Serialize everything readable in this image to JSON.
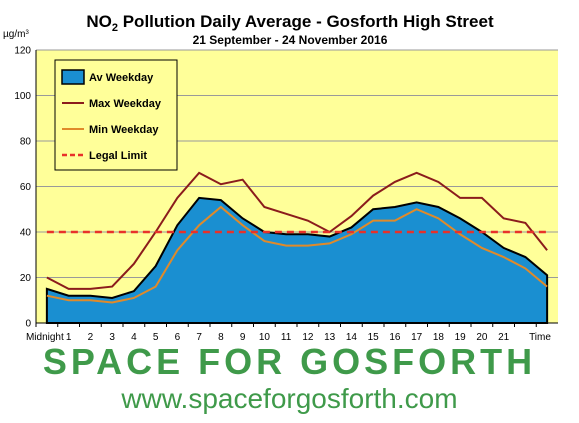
{
  "chart_data": {
    "type": "area",
    "title_main": "NO",
    "title_sub": "2",
    "title_rest": " Pollution Daily Average - Gosforth High Street",
    "subtitle": "21 September - 24 November 2016",
    "ylabel": "µg/m",
    "ylabel_sup": "3",
    "xlabel": "Time",
    "ylim": [
      0,
      120
    ],
    "yticks": [
      0,
      20,
      40,
      60,
      80,
      100,
      120
    ],
    "grid": true,
    "legend_position": "top-left",
    "categories": [
      "Midnight",
      "1",
      "2",
      "3",
      "4",
      "5",
      "6",
      "7",
      "8",
      "9",
      "10",
      "11",
      "12",
      "13",
      "14",
      "15",
      "16",
      "17",
      "18",
      "19",
      "20",
      "21",
      "",
      ""
    ],
    "series": [
      {
        "name": "Av Weekday",
        "kind": "area",
        "color": "#1a8fd1",
        "outline": "#000000",
        "values": [
          15,
          12,
          12,
          11,
          14,
          25,
          43,
          55,
          54,
          46,
          40,
          39,
          39,
          38,
          42,
          50,
          51,
          53,
          51,
          46,
          40,
          33,
          29,
          21
        ]
      },
      {
        "name": "Max Weekday",
        "kind": "line",
        "color": "#8b1c1c",
        "values": [
          20,
          15,
          15,
          16,
          26,
          40,
          55,
          66,
          61,
          63,
          51,
          48,
          45,
          40,
          47,
          56,
          62,
          66,
          62,
          55,
          55,
          46,
          44,
          32
        ]
      },
      {
        "name": "Min Weekday",
        "kind": "line",
        "color": "#e08a2a",
        "values": [
          12,
          10,
          10,
          9,
          11,
          16,
          32,
          43,
          51,
          43,
          36,
          34,
          34,
          35,
          39,
          45,
          45,
          50,
          46,
          39,
          33,
          29,
          24,
          16
        ]
      },
      {
        "name": "Legal Limit",
        "kind": "dashed",
        "color": "#e8312a",
        "constant": 40
      }
    ],
    "colors": {
      "plot_background": "#ffff99",
      "grid": "#9a9a9a"
    }
  },
  "branding": {
    "name": "SPACE FOR GOSFORTH",
    "url": "www.spaceforgosforth.com"
  }
}
